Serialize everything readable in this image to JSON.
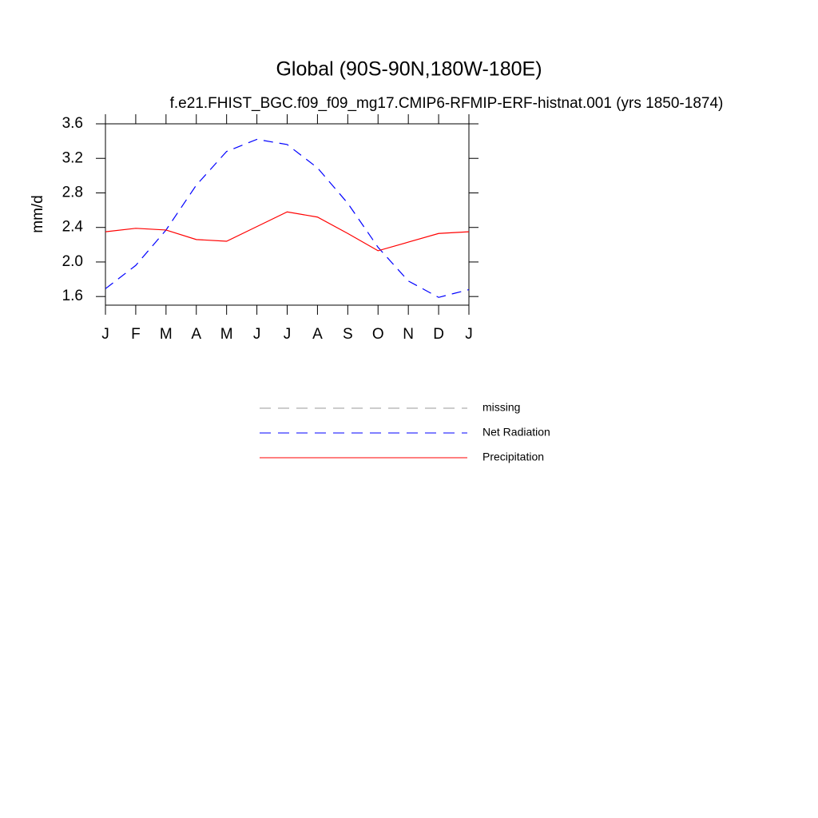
{
  "chart_data": {
    "type": "line",
    "title": "Global (90S-90N,180W-180E)",
    "subtitle": "f.e21.FHIST_BGC.f09_f09_mg17.CMIP6-RFMIP-ERF-histnat.001 (yrs 1850-1874)",
    "y_label": "mm/d",
    "categories": [
      "J",
      "F",
      "M",
      "A",
      "M",
      "J",
      "J",
      "A",
      "S",
      "O",
      "N",
      "D",
      "J"
    ],
    "ylim": [
      1.5,
      3.6
    ],
    "yticks": [
      {
        "value": 1.6,
        "label": "1.6"
      },
      {
        "value": 2.0,
        "label": "2.0"
      },
      {
        "value": 2.4,
        "label": "2.4"
      },
      {
        "value": 2.8,
        "label": "2.8"
      },
      {
        "value": 3.2,
        "label": "3.2"
      },
      {
        "value": 3.6,
        "label": "3.6"
      }
    ],
    "series": [
      {
        "name": "missing",
        "color": "#999999",
        "dash": true,
        "values": [
          null,
          null,
          null,
          null,
          null,
          null,
          null,
          null,
          null,
          null,
          null,
          null,
          null
        ]
      },
      {
        "name": "Net Radiation",
        "color": "#0000ff",
        "dash": true,
        "values": [
          1.69,
          1.96,
          2.37,
          2.89,
          3.28,
          3.42,
          3.36,
          3.09,
          2.68,
          2.17,
          1.78,
          1.59,
          1.68
        ]
      },
      {
        "name": "Precipitation",
        "color": "#ff0000",
        "dash": false,
        "values": [
          2.35,
          2.39,
          2.37,
          2.26,
          2.24,
          2.41,
          2.58,
          2.52,
          2.33,
          2.13,
          2.23,
          2.33,
          2.35
        ]
      }
    ]
  }
}
